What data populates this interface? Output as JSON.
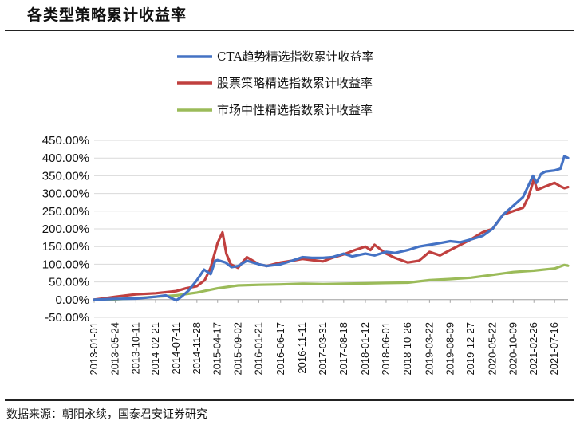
{
  "title": "各类型策略累计收益率",
  "source": "数据来源：朝阳永续，国泰君安证券研究",
  "chart_data": {
    "type": "line",
    "x_start": "2013-01-01",
    "x_end": "2021-10-15",
    "x_tick_labels": [
      "2013-01-01",
      "2013-05-24",
      "2013-10-11",
      "2014-02-21",
      "2014-07-11",
      "2014-11-28",
      "2015-04-17",
      "2015-09-02",
      "2016-01-21",
      "2016-06-17",
      "2016-11-11",
      "2017-03-31",
      "2017-08-18",
      "2018-01-12",
      "2018-06-01",
      "2018-10-26",
      "2019-03-22",
      "2019-08-09",
      "2019-12-27",
      "2020-05-22",
      "2020-10-09",
      "2021-02-26",
      "2021-07-16"
    ],
    "y_tick_labels": [
      "450.00%",
      "400.00%",
      "350.00%",
      "300.00%",
      "250.00%",
      "200.00%",
      "150.00%",
      "100.00%",
      "50.00%",
      "0.00%",
      "-50.00%"
    ],
    "ylim": [
      -50,
      450
    ],
    "y_step": 50,
    "grid": true,
    "legend_position": "top-right",
    "series": [
      {
        "name": "CTA趋势精选指数累计收益率",
        "color": "#4472C4",
        "points": [
          [
            "2013-01-01",
            0
          ],
          [
            "2013-05-24",
            2
          ],
          [
            "2013-10-11",
            3
          ],
          [
            "2014-02-21",
            8
          ],
          [
            "2014-05-01",
            12
          ],
          [
            "2014-07-11",
            -2
          ],
          [
            "2014-08-15",
            8
          ],
          [
            "2014-10-01",
            25
          ],
          [
            "2014-11-28",
            55
          ],
          [
            "2015-01-15",
            85
          ],
          [
            "2015-03-01",
            72
          ],
          [
            "2015-04-01",
            110
          ],
          [
            "2015-04-17",
            112
          ],
          [
            "2015-06-10",
            105
          ],
          [
            "2015-07-20",
            92
          ],
          [
            "2015-09-02",
            95
          ],
          [
            "2015-11-01",
            110
          ],
          [
            "2016-01-21",
            100
          ],
          [
            "2016-03-15",
            95
          ],
          [
            "2016-06-17",
            100
          ],
          [
            "2016-09-01",
            110
          ],
          [
            "2016-11-11",
            120
          ],
          [
            "2017-01-15",
            118
          ],
          [
            "2017-03-31",
            118
          ],
          [
            "2017-06-01",
            120
          ],
          [
            "2017-08-18",
            130
          ],
          [
            "2017-10-15",
            122
          ],
          [
            "2018-01-12",
            130
          ],
          [
            "2018-03-15",
            125
          ],
          [
            "2018-06-01",
            135
          ],
          [
            "2018-08-01",
            132
          ],
          [
            "2018-10-26",
            140
          ],
          [
            "2019-01-10",
            150
          ],
          [
            "2019-03-22",
            155
          ],
          [
            "2019-06-01",
            160
          ],
          [
            "2019-08-09",
            165
          ],
          [
            "2019-10-15",
            162
          ],
          [
            "2019-12-27",
            170
          ],
          [
            "2020-03-15",
            180
          ],
          [
            "2020-05-22",
            200
          ],
          [
            "2020-08-01",
            240
          ],
          [
            "2020-10-09",
            265
          ],
          [
            "2020-12-15",
            290
          ],
          [
            "2021-02-20",
            350
          ],
          [
            "2021-03-15",
            330
          ],
          [
            "2021-04-15",
            355
          ],
          [
            "2021-05-15",
            362
          ],
          [
            "2021-07-16",
            365
          ],
          [
            "2021-08-25",
            370
          ],
          [
            "2021-09-20",
            405
          ],
          [
            "2021-10-15",
            400
          ]
        ]
      },
      {
        "name": "股票策略精选指数累计收益率",
        "color": "#C0403F",
        "points": [
          [
            "2013-01-01",
            0
          ],
          [
            "2013-05-24",
            8
          ],
          [
            "2013-10-11",
            15
          ],
          [
            "2014-02-21",
            18
          ],
          [
            "2014-07-11",
            24
          ],
          [
            "2014-09-15",
            32
          ],
          [
            "2014-11-28",
            38
          ],
          [
            "2015-01-20",
            55
          ],
          [
            "2015-03-01",
            90
          ],
          [
            "2015-04-17",
            160
          ],
          [
            "2015-05-20",
            190
          ],
          [
            "2015-06-15",
            130
          ],
          [
            "2015-07-15",
            100
          ],
          [
            "2015-09-02",
            90
          ],
          [
            "2015-11-01",
            120
          ],
          [
            "2016-01-21",
            100
          ],
          [
            "2016-03-15",
            95
          ],
          [
            "2016-06-17",
            105
          ],
          [
            "2016-09-01",
            110
          ],
          [
            "2016-11-11",
            115
          ],
          [
            "2017-01-15",
            112
          ],
          [
            "2017-03-31",
            108
          ],
          [
            "2017-06-01",
            118
          ],
          [
            "2017-08-18",
            128
          ],
          [
            "2017-11-01",
            140
          ],
          [
            "2018-01-12",
            150
          ],
          [
            "2018-02-15",
            140
          ],
          [
            "2018-03-15",
            155
          ],
          [
            "2018-06-01",
            130
          ],
          [
            "2018-08-01",
            118
          ],
          [
            "2018-10-26",
            105
          ],
          [
            "2019-01-10",
            110
          ],
          [
            "2019-03-22",
            135
          ],
          [
            "2019-06-01",
            125
          ],
          [
            "2019-08-09",
            140
          ],
          [
            "2019-12-27",
            170
          ],
          [
            "2020-03-15",
            190
          ],
          [
            "2020-05-22",
            200
          ],
          [
            "2020-08-01",
            240
          ],
          [
            "2020-10-09",
            250
          ],
          [
            "2020-12-15",
            260
          ],
          [
            "2021-01-20",
            290
          ],
          [
            "2021-02-26",
            340
          ],
          [
            "2021-03-20",
            310
          ],
          [
            "2021-05-15",
            320
          ],
          [
            "2021-07-16",
            330
          ],
          [
            "2021-08-25",
            320
          ],
          [
            "2021-09-20",
            315
          ],
          [
            "2021-10-15",
            318
          ]
        ]
      },
      {
        "name": "市场中性精选指数累计收益率",
        "color": "#9BBB59",
        "points": [
          [
            "2013-01-01",
            0
          ],
          [
            "2013-05-24",
            1
          ],
          [
            "2013-10-11",
            4
          ],
          [
            "2014-02-21",
            8
          ],
          [
            "2014-07-11",
            12
          ],
          [
            "2014-11-28",
            20
          ],
          [
            "2015-04-17",
            32
          ],
          [
            "2015-09-02",
            40
          ],
          [
            "2016-01-21",
            42
          ],
          [
            "2016-06-17",
            43
          ],
          [
            "2016-11-11",
            45
          ],
          [
            "2017-03-31",
            44
          ],
          [
            "2017-08-18",
            45
          ],
          [
            "2018-01-12",
            46
          ],
          [
            "2018-06-01",
            47
          ],
          [
            "2018-10-26",
            48
          ],
          [
            "2019-03-22",
            55
          ],
          [
            "2019-08-09",
            58
          ],
          [
            "2019-12-27",
            62
          ],
          [
            "2020-05-22",
            70
          ],
          [
            "2020-10-09",
            78
          ],
          [
            "2021-02-26",
            82
          ],
          [
            "2021-07-16",
            88
          ],
          [
            "2021-09-20",
            98
          ],
          [
            "2021-10-15",
            96
          ]
        ]
      }
    ]
  }
}
